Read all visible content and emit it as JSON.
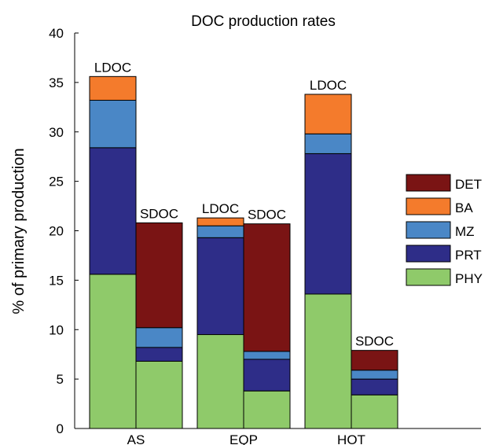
{
  "chart_data": {
    "type": "bar",
    "title": "DOC production rates",
    "xlabel": "",
    "ylabel": "% of primary production",
    "ylim": [
      0,
      40
    ],
    "yticks": [
      0,
      5,
      10,
      15,
      20,
      25,
      30,
      35,
      40
    ],
    "categories": [
      "AS",
      "EQP",
      "HOT"
    ],
    "stacked": true,
    "legend_position": "right",
    "components": [
      {
        "name": "DET",
        "color": "#7a1414"
      },
      {
        "name": "BA",
        "color": "#f47b2c"
      },
      {
        "name": "MZ",
        "color": "#4a87c6"
      },
      {
        "name": "PRT",
        "color": "#2e2d88"
      },
      {
        "name": "PHY",
        "color": "#8fca6a"
      }
    ],
    "bars": [
      {
        "category": "AS",
        "label": "LDOC",
        "values": {
          "PHY": 15.6,
          "PRT": 12.8,
          "MZ": 4.8,
          "BA": 2.4,
          "DET": 0
        }
      },
      {
        "category": "AS",
        "label": "SDOC",
        "values": {
          "PHY": 6.8,
          "PRT": 1.4,
          "MZ": 2.0,
          "BA": 0,
          "DET": 10.6
        }
      },
      {
        "category": "EQP",
        "label": "LDOC",
        "values": {
          "PHY": 9.5,
          "PRT": 9.8,
          "MZ": 1.2,
          "BA": 0.8,
          "DET": 0
        }
      },
      {
        "category": "EQP",
        "label": "SDOC",
        "values": {
          "PHY": 3.8,
          "PRT": 3.2,
          "MZ": 0.8,
          "BA": 0,
          "DET": 12.9
        }
      },
      {
        "category": "HOT",
        "label": "LDOC",
        "values": {
          "PHY": 13.6,
          "PRT": 14.2,
          "MZ": 2.0,
          "BA": 4.0,
          "DET": 0
        }
      },
      {
        "category": "HOT",
        "label": "SDOC",
        "values": {
          "PHY": 3.4,
          "PRT": 1.6,
          "MZ": 0.9,
          "BA": 0,
          "DET": 2.0
        }
      }
    ]
  }
}
